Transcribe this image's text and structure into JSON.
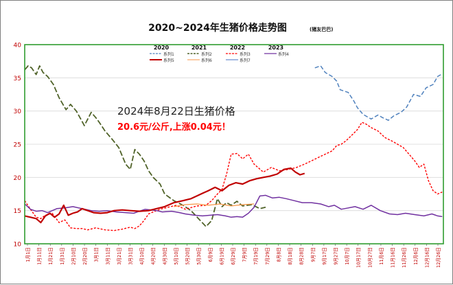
{
  "chart_data": {
    "type": "line",
    "title": "2020~2024年生猪价格走势图",
    "title_note": "(猪友巴巴)",
    "ylim": [
      10,
      40
    ],
    "y_ticks": [
      10,
      15,
      20,
      25,
      30,
      35,
      40
    ],
    "x_tick_labels": [
      "1月1日",
      "1月11日",
      "1月21日",
      "1月31日",
      "2月10日",
      "2月20日",
      "3月1日",
      "3月11日",
      "3月21日",
      "3月31日",
      "4月10日",
      "4月20日",
      "4月30日",
      "5月10日",
      "5月20日",
      "5月30日",
      "6月9日",
      "6月19日",
      "6月29日",
      "7月9日",
      "7月19日",
      "7月29日",
      "8月8日",
      "8月18日",
      "8月28日",
      "9月7日",
      "9月17日",
      "9月27日",
      "10月7日",
      "10月17日",
      "10月27日",
      "11月6日",
      "11月16日",
      "11月26日",
      "12月6日",
      "12月16日",
      "12月26日"
    ],
    "x_range": [
      0,
      365
    ],
    "legend_years": [
      "2020",
      "2021",
      "2022",
      "2023"
    ],
    "grid": true,
    "colors": {
      "plot_border": "#2f9d2f",
      "axis": "#555555",
      "grid": "#d9d9d9",
      "y_tick": "#c00000",
      "x_tick": "#c00000"
    },
    "annotation": {
      "line1": "2024年8月22日生猪价格",
      "line2": "20.6元/公斤,上涨0.04元！",
      "line1_color": "#222222",
      "line2_color": "#ff0000"
    },
    "series": [
      {
        "name": "系列1",
        "year": "2020",
        "color": "#4f81bd",
        "dash": "6,3",
        "width": 1.5,
        "x": [
          253,
          258,
          262,
          268,
          272,
          275,
          282,
          287,
          290,
          295,
          302,
          308,
          312,
          317,
          322,
          328,
          333,
          339,
          345,
          350,
          356,
          360,
          364
        ],
        "y": [
          36.5,
          36.8,
          35.8,
          35.2,
          34.5,
          33.2,
          32.8,
          31.5,
          30.5,
          29.5,
          28.8,
          29.4,
          29.0,
          28.6,
          29.3,
          29.8,
          30.6,
          32.5,
          32.2,
          33.5,
          34.0,
          35.2,
          35.6
        ]
      },
      {
        "name": "系列2",
        "year": "2021",
        "color": "#4f6228",
        "dash": "8,3",
        "width": 1.8,
        "x": [
          0,
          3,
          6,
          10,
          13,
          16,
          20,
          25,
          30,
          36,
          40,
          45,
          52,
          58,
          62,
          65,
          70,
          76,
          82,
          88,
          92,
          96,
          100,
          104,
          108,
          112,
          118,
          122,
          130,
          138,
          145,
          152,
          158,
          163,
          168,
          172,
          176,
          180,
          185,
          190,
          198,
          205,
          210
        ],
        "y": [
          36.2,
          36.8,
          36.5,
          35.5,
          36.8,
          35.8,
          35.2,
          34.0,
          32.0,
          30.2,
          31.0,
          30.0,
          27.8,
          29.8,
          29.0,
          28.3,
          27.0,
          25.8,
          24.5,
          22.0,
          21.2,
          24.2,
          23.5,
          22.5,
          21.0,
          20.0,
          19.0,
          17.5,
          16.5,
          15.8,
          15.0,
          13.7,
          12.6,
          13.5,
          16.8,
          15.6,
          16.2,
          15.8,
          16.4,
          15.7,
          15.9,
          15.3,
          15.5
        ]
      },
      {
        "name": "系列3",
        "year": "2022",
        "color": "#ff0000",
        "dash": "3,2",
        "width": 1.4,
        "x": [
          0,
          5,
          10,
          14,
          18,
          24,
          30,
          35,
          40,
          45,
          50,
          55,
          62,
          70,
          78,
          85,
          92,
          96,
          100,
          104,
          108,
          112,
          118,
          125,
          132,
          140,
          150,
          158,
          163,
          168,
          172,
          176,
          180,
          185,
          190,
          195,
          200,
          208,
          215,
          222,
          230,
          237,
          244,
          250,
          256,
          262,
          268,
          272,
          276,
          280,
          286,
          290,
          294,
          298,
          302,
          308,
          314,
          320,
          325,
          330,
          335,
          340,
          344,
          348,
          352,
          356,
          360,
          364
        ],
        "y": [
          16.5,
          15.2,
          14.0,
          13.8,
          14.3,
          14.6,
          13.2,
          13.6,
          12.4,
          12.3,
          12.3,
          12.1,
          12.4,
          12.1,
          12.0,
          12.2,
          12.5,
          12.3,
          12.7,
          13.5,
          14.5,
          14.8,
          15.2,
          15.5,
          15.8,
          15.2,
          15.7,
          15.8,
          16.5,
          17.5,
          18.2,
          20.5,
          23.5,
          23.6,
          22.8,
          23.5,
          22.0,
          20.8,
          21.5,
          21.0,
          21.2,
          21.5,
          22.0,
          22.5,
          23.0,
          23.5,
          24.0,
          24.8,
          25.0,
          25.5,
          26.5,
          27.2,
          28.3,
          28.0,
          27.5,
          27.0,
          26.0,
          25.5,
          25.0,
          24.5,
          23.5,
          22.5,
          21.5,
          22.0,
          19.5,
          18.0,
          17.5,
          17.8
        ]
      },
      {
        "name": "系列4",
        "year": "2023",
        "color": "#7030a0",
        "dash": "",
        "width": 1.5,
        "x": [
          0,
          5,
          10,
          15,
          20,
          28,
          35,
          42,
          50,
          58,
          65,
          72,
          80,
          88,
          95,
          100,
          105,
          110,
          115,
          120,
          128,
          135,
          140,
          148,
          155,
          162,
          168,
          175,
          180,
          185,
          190,
          195,
          200,
          205,
          210,
          216,
          222,
          228,
          235,
          242,
          250,
          258,
          265,
          270,
          276,
          282,
          288,
          295,
          302,
          310,
          318,
          325,
          332,
          340,
          348,
          355,
          360,
          364
        ],
        "y": [
          16.0,
          15.2,
          14.9,
          15.0,
          14.7,
          15.3,
          15.4,
          15.6,
          15.3,
          15.0,
          14.9,
          15.0,
          14.8,
          14.7,
          14.6,
          14.9,
          15.2,
          15.1,
          15.0,
          14.8,
          14.9,
          14.7,
          14.5,
          14.3,
          14.2,
          14.3,
          14.4,
          14.2,
          14.0,
          14.1,
          14.0,
          14.6,
          15.5,
          17.2,
          17.3,
          16.9,
          17.0,
          16.8,
          16.5,
          16.2,
          16.2,
          16.0,
          15.6,
          15.8,
          15.2,
          15.4,
          15.6,
          15.2,
          15.8,
          15.0,
          14.5,
          14.4,
          14.6,
          14.4,
          14.2,
          14.5,
          14.2,
          14.1
        ]
      },
      {
        "name": "系列5",
        "year": "2024",
        "color": "#c00000",
        "dash": "",
        "width": 2.2,
        "x": [
          0,
          5,
          10,
          14,
          18,
          22,
          26,
          30,
          34,
          38,
          42,
          46,
          50,
          55,
          60,
          66,
          72,
          78,
          85,
          92,
          100,
          108,
          115,
          122,
          130,
          138,
          145,
          150,
          155,
          160,
          166,
          172,
          178,
          184,
          190,
          196,
          202,
          208,
          214,
          220,
          226,
          232,
          236,
          240,
          244
        ],
        "y": [
          14.2,
          14.0,
          13.8,
          13.2,
          14.2,
          14.6,
          14.0,
          14.5,
          15.8,
          14.3,
          14.6,
          14.8,
          15.3,
          15.0,
          14.7,
          14.6,
          14.7,
          15.0,
          15.1,
          15.0,
          14.9,
          15.0,
          15.3,
          15.6,
          16.2,
          16.5,
          16.8,
          17.2,
          17.6,
          18.0,
          18.5,
          18.0,
          18.8,
          19.2,
          19.0,
          19.5,
          19.8,
          20.0,
          20.2,
          20.5,
          21.2,
          21.4,
          20.8,
          20.4,
          20.6
        ]
      },
      {
        "name": "系列6",
        "year": "2024",
        "color": "#f79646",
        "dash": "",
        "width": 1.3,
        "x": [
          130,
          140,
          150,
          160,
          170,
          180,
          190,
          200
        ],
        "y": [
          15.6,
          15.9,
          16.0,
          15.8,
          16.0,
          15.7,
          15.9,
          16.0
        ]
      },
      {
        "name": "系列7",
        "year": "",
        "color": "#4472c4",
        "dash": "",
        "width": 1.2,
        "x": [],
        "y": []
      }
    ]
  }
}
